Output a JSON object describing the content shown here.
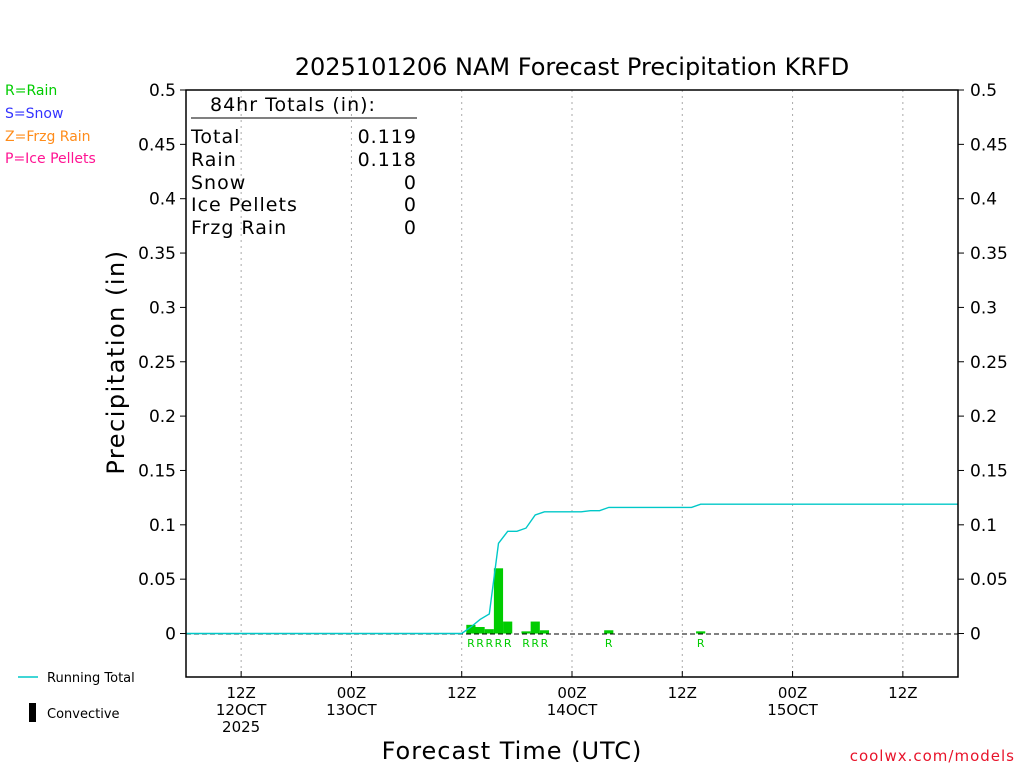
{
  "chart_data": {
    "type": "bar",
    "title": "2025101206 NAM Forecast Precipitation KRFD",
    "xlabel": "Forecast Time (UTC)",
    "ylabel": "Precipitation (in)",
    "ylim": [
      -0.04,
      0.5
    ],
    "yticks": [
      "0",
      "0.05",
      "0.1",
      "0.15",
      "0.2",
      "0.25",
      "0.3",
      "0.35",
      "0.4",
      "0.45",
      "0.5"
    ],
    "ytick_values": [
      0,
      0.05,
      0.1,
      0.15,
      0.2,
      0.25,
      0.3,
      0.35,
      0.4,
      0.45,
      0.5
    ],
    "x_unit": "forecast hour",
    "xlim": [
      0,
      84
    ],
    "xticks": [
      {
        "hour": 6,
        "l1": "12Z",
        "l2": "12OCT",
        "l3": "2025"
      },
      {
        "hour": 18,
        "l1": "00Z",
        "l2": "13OCT",
        "l3": ""
      },
      {
        "hour": 30,
        "l1": "12Z",
        "l2": "",
        "l3": ""
      },
      {
        "hour": 42,
        "l1": "00Z",
        "l2": "14OCT",
        "l3": ""
      },
      {
        "hour": 54,
        "l1": "12Z",
        "l2": "",
        "l3": ""
      },
      {
        "hour": 66,
        "l1": "00Z",
        "l2": "15OCT",
        "l3": ""
      },
      {
        "hour": 78,
        "l1": "12Z",
        "l2": "",
        "l3": ""
      }
    ],
    "grid": "vertical-dotted",
    "legend": {
      "top_left": [
        {
          "text": "R=Rain",
          "color": "#00cc00"
        },
        {
          "text": "S=Snow",
          "color": "#3333ff"
        },
        {
          "text": "Z=Frzg Rain",
          "color": "#ff8c1a"
        },
        {
          "text": "P=Ice Pellets",
          "color": "#ff1493"
        }
      ],
      "bottom_left": [
        {
          "text": "Running Total",
          "kind": "line",
          "color": "#00c8c8"
        },
        {
          "text": "Convective",
          "kind": "bar",
          "color": "#000000"
        }
      ]
    },
    "totals": {
      "header": "84hr Totals (in):",
      "rows": [
        {
          "label": "Total",
          "value": "0.119"
        },
        {
          "label": "Rain",
          "value": "0.118"
        },
        {
          "label": "Snow",
          "value": "0"
        },
        {
          "label": "Ice Pellets",
          "value": "0"
        },
        {
          "label": "Frzg Rain",
          "value": "0"
        }
      ]
    },
    "bars": [
      {
        "hour": 31,
        "value": 0.008,
        "type": "R"
      },
      {
        "hour": 32,
        "value": 0.006,
        "type": "R"
      },
      {
        "hour": 33,
        "value": 0.004,
        "type": "R"
      },
      {
        "hour": 34,
        "value": 0.06,
        "type": "R"
      },
      {
        "hour": 35,
        "value": 0.011,
        "type": "R"
      },
      {
        "hour": 37,
        "value": 0.002,
        "type": "R"
      },
      {
        "hour": 38,
        "value": 0.011,
        "type": "R"
      },
      {
        "hour": 39,
        "value": 0.003,
        "type": "R"
      },
      {
        "hour": 46,
        "value": 0.003,
        "type": "R"
      },
      {
        "hour": 56,
        "value": 0.002,
        "type": "R"
      }
    ],
    "series": [
      {
        "name": "Running Total",
        "x": [
          0,
          30,
          31,
          32,
          33,
          34,
          35,
          36,
          37,
          38,
          39,
          40,
          41,
          42,
          43,
          44,
          45,
          46,
          47,
          48,
          49,
          50,
          51,
          52,
          53,
          54,
          55,
          56,
          57,
          58,
          60,
          66,
          72,
          78,
          84
        ],
        "values": [
          0,
          0,
          0.006,
          0.013,
          0.018,
          0.083,
          0.094,
          0.094,
          0.097,
          0.109,
          0.112,
          0.112,
          0.112,
          0.112,
          0.112,
          0.113,
          0.113,
          0.116,
          0.116,
          0.116,
          0.116,
          0.116,
          0.116,
          0.116,
          0.116,
          0.116,
          0.116,
          0.119,
          0.119,
          0.119,
          0.119,
          0.119,
          0.119,
          0.119,
          0.119
        ]
      }
    ],
    "colors": {
      "rain": "#00cc00",
      "running_total": "#00c8c8",
      "axis": "#000000",
      "grid": "#aaaaaa"
    }
  },
  "credit": "coolwx.com/models"
}
